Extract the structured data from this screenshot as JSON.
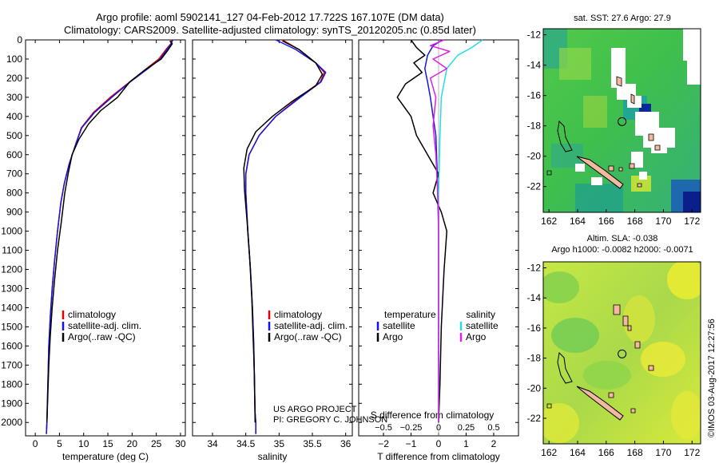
{
  "header": {
    "line1": "Argo profile: aoml 5902141_127 04-Feb-2012 17.722S 167.107E (DM data)",
    "line2": "Climatology: CARS2009. Satellite-adjusted climatology: synTS_20120205.nc (0.85d later)"
  },
  "credits": {
    "project": "US ARGO PROJECT",
    "pi": "PI: GREGORY C. JOHNSON",
    "imos": "©IMOS 03-Aug-2017 12:27:56"
  },
  "colors": {
    "climatology": "#e00000",
    "satellite": "#1414e6",
    "argo": "#000000",
    "sal_satellite": "#22dde8",
    "sal_argo": "#e020e0",
    "land": "#f2b9a0"
  },
  "chart_data": [
    {
      "type": "line",
      "id": "temperature",
      "xlabel": "temperature (deg C)",
      "ylabel": "",
      "xlim": [
        -2,
        31
      ],
      "ylim": [
        2070,
        0
      ],
      "xticks": [
        0,
        5,
        10,
        15,
        20,
        25,
        30
      ],
      "yticks": [
        0,
        100,
        200,
        300,
        400,
        500,
        600,
        700,
        800,
        900,
        1000,
        1100,
        1200,
        1300,
        1400,
        1500,
        1600,
        1700,
        1800,
        1900,
        2000
      ],
      "legend": [
        "climatology",
        "satellite-adj. clim.",
        "Argo(..raw -QC)"
      ],
      "series": [
        {
          "name": "climatology",
          "color_key": "climatology",
          "x": [
            28.2,
            28.0,
            27.0,
            25.5,
            23.0,
            19.5,
            15.5,
            12.0,
            9.5,
            8.3,
            7.0,
            6.0,
            5.3,
            4.6,
            4.0,
            3.5,
            3.1,
            2.8,
            2.6,
            2.4,
            2.3
          ],
          "depth": [
            0,
            20,
            50,
            100,
            150,
            220,
            300,
            380,
            460,
            550,
            650,
            750,
            850,
            1000,
            1150,
            1300,
            1450,
            1600,
            1800,
            2000,
            2060
          ]
        },
        {
          "name": "satellite-adj. clim.",
          "color_key": "satellite",
          "x": [
            28.4,
            28.1,
            27.2,
            25.8,
            23.3,
            19.6,
            15.8,
            12.2,
            9.6,
            8.3,
            7.0,
            6.0,
            5.3,
            4.6,
            4.0,
            3.5,
            3.1,
            2.8,
            2.6,
            2.4,
            2.3
          ],
          "depth": [
            0,
            20,
            50,
            100,
            150,
            220,
            300,
            380,
            460,
            550,
            650,
            750,
            850,
            1000,
            1150,
            1300,
            1450,
            1600,
            1800,
            2000,
            2060
          ]
        },
        {
          "name": "Argo(..raw -QC)",
          "color_key": "argo",
          "x": [
            27.8,
            28.3,
            27.5,
            26.0,
            22.5,
            19.5,
            17.0,
            13.5,
            11.0,
            9.0,
            7.6,
            6.8,
            6.1,
            5.4,
            4.6,
            4.0,
            3.5,
            3.1,
            2.8,
            2.6,
            2.4
          ],
          "depth": [
            5,
            20,
            50,
            100,
            160,
            220,
            300,
            370,
            440,
            520,
            600,
            700,
            800,
            950,
            1100,
            1250,
            1400,
            1550,
            1700,
            1850,
            2000
          ]
        }
      ]
    },
    {
      "type": "line",
      "id": "salinity",
      "xlabel": "salinity",
      "xlim": [
        33.7,
        36.1
      ],
      "ylim": [
        2070,
        0
      ],
      "xticks": [
        34,
        34.5,
        35,
        35.5,
        36
      ],
      "xticklabels": [
        "34",
        "34.5",
        "35",
        "35.5",
        "36"
      ],
      "legend": [
        "climatology",
        "satellite-adj. clim.",
        "Argo(..raw -QC)"
      ],
      "series": [
        {
          "name": "climatology",
          "color_key": "climatology",
          "x": [
            35.05,
            35.3,
            35.55,
            35.68,
            35.62,
            35.3,
            34.95,
            34.7,
            34.55,
            34.5,
            34.5,
            34.53,
            34.57,
            34.6,
            34.62,
            34.63,
            34.64,
            34.65,
            34.65
          ],
          "depth": [
            0,
            50,
            120,
            170,
            220,
            300,
            400,
            500,
            600,
            700,
            800,
            1000,
            1200,
            1400,
            1600,
            1800,
            1950,
            2000,
            2060
          ]
        },
        {
          "name": "satellite-adj. clim.",
          "color_key": "satellite",
          "x": [
            34.95,
            35.25,
            35.55,
            35.7,
            35.63,
            35.32,
            34.95,
            34.7,
            34.55,
            34.5,
            34.5,
            34.53,
            34.57,
            34.6,
            34.62,
            34.63,
            34.64,
            34.65,
            34.65
          ],
          "depth": [
            0,
            50,
            120,
            170,
            220,
            300,
            400,
            500,
            600,
            700,
            800,
            1000,
            1200,
            1400,
            1600,
            1800,
            1950,
            2000,
            2060
          ]
        },
        {
          "name": "Argo(..raw -QC)",
          "color_key": "argo",
          "x": [
            35.05,
            35.3,
            35.55,
            35.65,
            35.55,
            35.2,
            34.9,
            34.65,
            34.52,
            34.47,
            34.48,
            34.52,
            34.56,
            34.59,
            34.61,
            34.63,
            34.64
          ],
          "depth": [
            5,
            50,
            120,
            180,
            240,
            320,
            400,
            480,
            570,
            670,
            780,
            950,
            1150,
            1350,
            1550,
            1750,
            2000
          ]
        }
      ]
    },
    {
      "type": "line",
      "id": "differences",
      "xlabel": "T difference from climatology",
      "xlabel_top": "S difference from climatology",
      "xlim": [
        -2.9,
        2.9
      ],
      "ylim": [
        2070,
        0
      ],
      "xticks": [
        -2,
        -1,
        0,
        1,
        2
      ],
      "xticklabels": [
        "−2",
        "−1",
        "0",
        "1",
        "2"
      ],
      "sticks": [
        -0.5,
        -0.25,
        0,
        0.25,
        0.5
      ],
      "sticklabels": [
        "−0.5",
        "−0.25",
        "0",
        "0.25",
        "0.5"
      ],
      "s_scale": 0.25,
      "legend_t": [
        "temperature",
        "satellite",
        "Argo"
      ],
      "legend_s": [
        "salinity",
        "satellite",
        "Argo"
      ],
      "series": [
        {
          "name": "T satellite",
          "color_key": "satellite",
          "x": [
            0.15,
            -0.2,
            -0.4,
            -0.5,
            -0.4,
            -0.3,
            -0.2,
            -0.1,
            -0.05,
            0.0,
            0.0,
            0.0
          ],
          "depth": [
            0,
            30,
            80,
            150,
            220,
            300,
            400,
            500,
            700,
            1000,
            1500,
            2000
          ]
        },
        {
          "name": "T Argo",
          "color_key": "argo",
          "x": [
            -1.0,
            -0.8,
            -0.5,
            -0.9,
            -0.6,
            -1.2,
            -1.5,
            -1.0,
            -0.8,
            -0.4,
            0.0,
            -0.2,
            0.1,
            0.3,
            0.2,
            0.1,
            0.05,
            0.0
          ],
          "depth": [
            0,
            40,
            80,
            120,
            170,
            230,
            300,
            400,
            500,
            600,
            700,
            800,
            900,
            1000,
            1200,
            1500,
            1800,
            2000
          ]
        },
        {
          "name": "S satellite",
          "color_key": "sal_satellite",
          "x": [
            1.6,
            1.2,
            0.7,
            0.3,
            0.1,
            0.05,
            0.0,
            0.0,
            0.0
          ],
          "depth": [
            0,
            40,
            80,
            150,
            300,
            500,
            800,
            1300,
            2000
          ]
        },
        {
          "name": "S Argo",
          "color_key": "sal_argo",
          "x": [
            0.2,
            -0.3,
            0.4,
            -0.2,
            0.3,
            -0.3,
            -0.1,
            -0.2,
            -0.1,
            0.0,
            0.0
          ],
          "depth": [
            0,
            30,
            60,
            100,
            150,
            200,
            300,
            450,
            600,
            900,
            2000
          ]
        }
      ]
    },
    {
      "type": "heatmap",
      "id": "sst_map",
      "title": "sat. SST: 27.6  Argo: 27.9",
      "xticks": [
        162,
        164,
        166,
        168,
        170,
        172
      ],
      "yticks": [
        -12,
        -14,
        -16,
        -18,
        -20,
        -22
      ],
      "xlim": [
        161.6,
        172.6
      ],
      "ylim": [
        -23.7,
        -11.6
      ],
      "argo_position": [
        167.107,
        -17.722
      ]
    },
    {
      "type": "heatmap",
      "id": "sla_map",
      "title1": "Altim. SLA: -0.038",
      "title2": "Argo h1000: -0.0082 h2000: -0.0071",
      "xticks": [
        162,
        164,
        166,
        168,
        170,
        172
      ],
      "yticks": [
        -12,
        -14,
        -16,
        -18,
        -20,
        -22
      ],
      "xlim": [
        161.6,
        172.6
      ],
      "ylim": [
        -23.7,
        -11.6
      ],
      "argo_position": [
        167.107,
        -17.722
      ]
    }
  ]
}
